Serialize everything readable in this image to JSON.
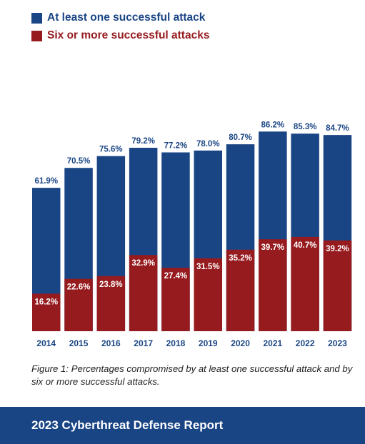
{
  "legend": {
    "series_one": "At least one successful attack",
    "series_six": "Six or more successful attacks"
  },
  "colors": {
    "blue": "#1a4585",
    "red": "#961b1f",
    "blue_text": "#1a4585"
  },
  "chart_data": {
    "type": "bar",
    "categories": [
      "2014",
      "2015",
      "2016",
      "2017",
      "2018",
      "2019",
      "2020",
      "2021",
      "2022",
      "2023"
    ],
    "series": [
      {
        "name": "At least one successful attack",
        "values": [
          61.9,
          70.5,
          75.6,
          79.2,
          77.2,
          78.0,
          80.7,
          86.2,
          85.3,
          84.7
        ],
        "color": "#1a4585"
      },
      {
        "name": "Six or more successful attacks",
        "values": [
          16.2,
          22.6,
          23.8,
          32.9,
          27.4,
          31.5,
          35.2,
          39.7,
          40.7,
          39.2
        ],
        "color": "#961b1f"
      }
    ],
    "labels_one": [
      "61.9%",
      "70.5%",
      "75.6%",
      "79.2%",
      "77.2%",
      "78.0%",
      "80.7%",
      "86.2%",
      "85.3%",
      "84.7%"
    ],
    "labels_six": [
      "16.2%",
      "22.6%",
      "23.8%",
      "32.9%",
      "27.4%",
      "31.5%",
      "35.2%",
      "39.7%",
      "40.7%",
      "39.2%"
    ],
    "ylim": [
      0,
      100
    ],
    "grid": false,
    "legend_position": "top-left"
  },
  "caption": "Figure 1: Percentages compromised by at least one successful attack and by six or more successful attacks.",
  "footer": {
    "title": "2023 Cyberthreat Defense Report"
  }
}
